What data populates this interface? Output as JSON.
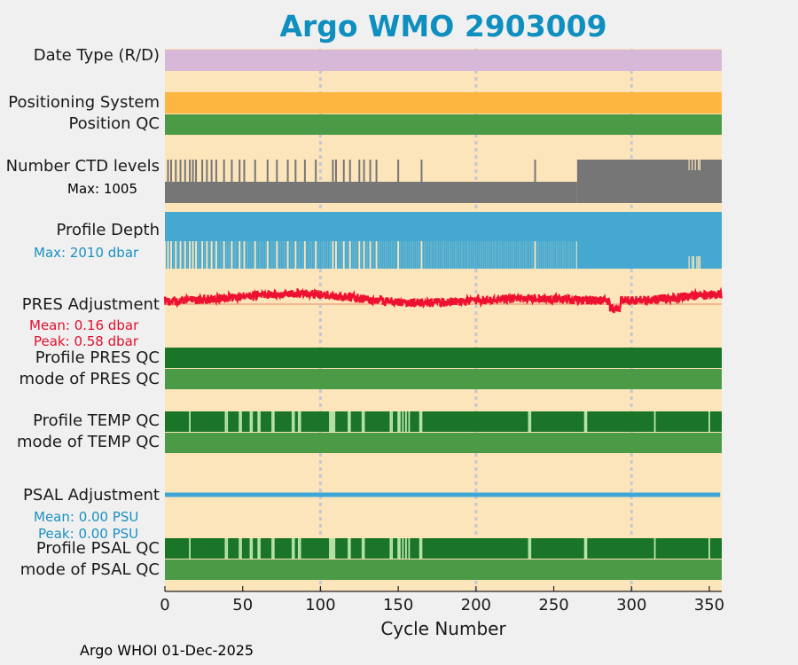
{
  "title": "Argo WMO 2903009",
  "footer": "Argo WHOI 01-Dec-2025",
  "labels": {
    "date_type": "Date Type (R/D)",
    "positioning_system": "Positioning System",
    "position_qc": "Position QC",
    "ctd_levels": "Number CTD levels",
    "ctd_max": "Max: 1005",
    "profile_depth": "Profile Depth",
    "depth_max": "Max: 2010 dbar",
    "pres_adj": "PRES Adjustment",
    "pres_mean": "Mean: 0.16 dbar",
    "pres_peak": "Peak: 0.58 dbar",
    "profile_pres_qc": "Profile PRES QC",
    "mode_pres_qc": "mode of PRES QC",
    "profile_temp_qc": "Profile TEMP QC",
    "mode_temp_qc": "mode of TEMP QC",
    "psal_adj": "PSAL Adjustment",
    "psal_mean": "Mean: 0.00 PSU",
    "psal_peak": "Peak: 0.00 PSU",
    "profile_psal_qc": "Profile PSAL QC",
    "mode_psal_qc": "mode of PSAL QC"
  },
  "colors": {
    "background": "#fde5bb",
    "date_type": "#d8b8d8",
    "positioning": "#fdb640",
    "qc_mode_green": "#4a9a46",
    "qc_profile_green": "#1a7529",
    "ctd_gray": "#767676",
    "depth_blue": "#44a8d0",
    "pres_red": "#ee1030",
    "psal_blue": "#3fa6d6",
    "title_blue": "#0e8fbf",
    "pres_text": "#e0102e",
    "psal_text": "#1a8fc0"
  },
  "chart_data": {
    "type": "timeline-panel",
    "xlabel": "Cycle Number",
    "xlim": [
      0,
      358
    ],
    "xticks": [
      "0",
      "50",
      "100",
      "150",
      "200",
      "250",
      "300",
      "350"
    ],
    "xtick_values": [
      0,
      50,
      100,
      150,
      200,
      250,
      300,
      350
    ],
    "grid_x": [
      100,
      200,
      300
    ],
    "ctd_levels": {
      "max": 1005,
      "baseline_before_265": 520,
      "baseline_after_265": 1005,
      "spike_cycles": [
        2,
        4,
        7,
        10,
        13,
        16,
        18,
        20,
        24,
        27,
        30,
        33,
        38,
        43,
        48,
        51,
        58,
        66,
        72,
        79,
        84,
        90,
        97,
        108,
        110,
        115,
        119,
        125,
        128,
        132,
        136,
        150,
        165,
        238
      ],
      "dip_cycles_after_265": [
        337,
        339,
        341,
        343,
        344
      ]
    },
    "profile_depth": {
      "max_dbar": 2010,
      "shallow_cycles": [
        2,
        4,
        7,
        10,
        13,
        16,
        18,
        20,
        24,
        27,
        30,
        33,
        38,
        43,
        48,
        51,
        58,
        66,
        72,
        79,
        84,
        90,
        97,
        108,
        110,
        115,
        119,
        125,
        128,
        132,
        136,
        150,
        165,
        238
      ],
      "dip_cycles_after_265": [
        337,
        339,
        340,
        342,
        343,
        344
      ]
    },
    "pres_adjustment": {
      "mean_dbar": 0.16,
      "peak_dbar": 0.58
    },
    "psal_adjustment": {
      "mean_psu": 0.0,
      "peak_psu": 0.0
    },
    "temp_qc_flag_cycles": [
      16,
      39,
      40,
      48,
      49,
      55,
      56,
      60,
      61,
      69,
      70,
      82,
      83,
      86,
      87,
      106,
      107,
      108,
      109,
      118,
      119,
      127,
      128,
      145,
      146,
      150,
      151,
      153,
      155,
      157,
      164,
      165,
      234,
      235,
      270,
      271,
      315,
      350
    ],
    "psal_qc_flag_cycles": [
      16,
      39,
      40,
      48,
      49,
      55,
      56,
      60,
      61,
      69,
      70,
      82,
      83,
      86,
      87,
      106,
      107,
      108,
      109,
      118,
      119,
      127,
      128,
      145,
      146,
      150,
      151,
      153,
      155,
      157,
      164,
      165,
      234,
      235,
      270,
      271,
      315,
      350
    ]
  }
}
